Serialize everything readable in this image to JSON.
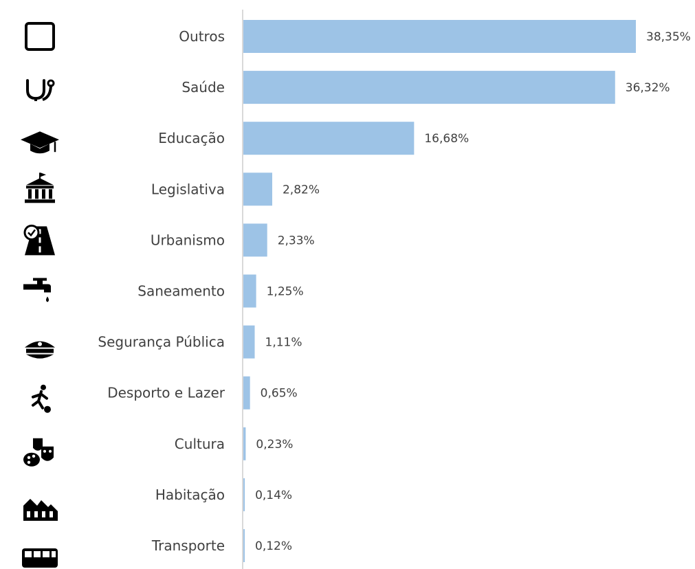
{
  "colors": {
    "bar": "#9dc3e6",
    "axis": "#d9d9d9",
    "label": "#404040",
    "icon": "#000000"
  },
  "chart_data": {
    "type": "bar",
    "orientation": "horizontal",
    "title": "",
    "xlabel": "",
    "ylabel": "",
    "xlim": [
      0,
      38.35
    ],
    "grid": false,
    "legend": "none",
    "categories": [
      "Outros",
      "Saúde",
      "Educação",
      "Legislativa",
      "Urbanismo",
      "Saneamento",
      "Segurança Pública",
      "Desporto e Lazer",
      "Cultura",
      "Habitação",
      "Transporte"
    ],
    "values": [
      38.35,
      36.32,
      16.68,
      2.82,
      2.33,
      1.25,
      1.11,
      0.65,
      0.23,
      0.14,
      0.12
    ],
    "value_labels": [
      "38,35%",
      "36,32%",
      "16,68%",
      "2,82%",
      "2,33%",
      "1,25%",
      "1,11%",
      "0,65%",
      "0,23%",
      "0,14%",
      "0,12%"
    ],
    "icons": [
      "square-outline-icon",
      "stethoscope-icon",
      "graduation-cap-icon",
      "government-building-icon",
      "road-icon",
      "water-tap-icon",
      "police-cap-icon",
      "soccer-player-icon",
      "theater-masks-icon",
      "factory-houses-icon",
      "bus-icon"
    ]
  }
}
